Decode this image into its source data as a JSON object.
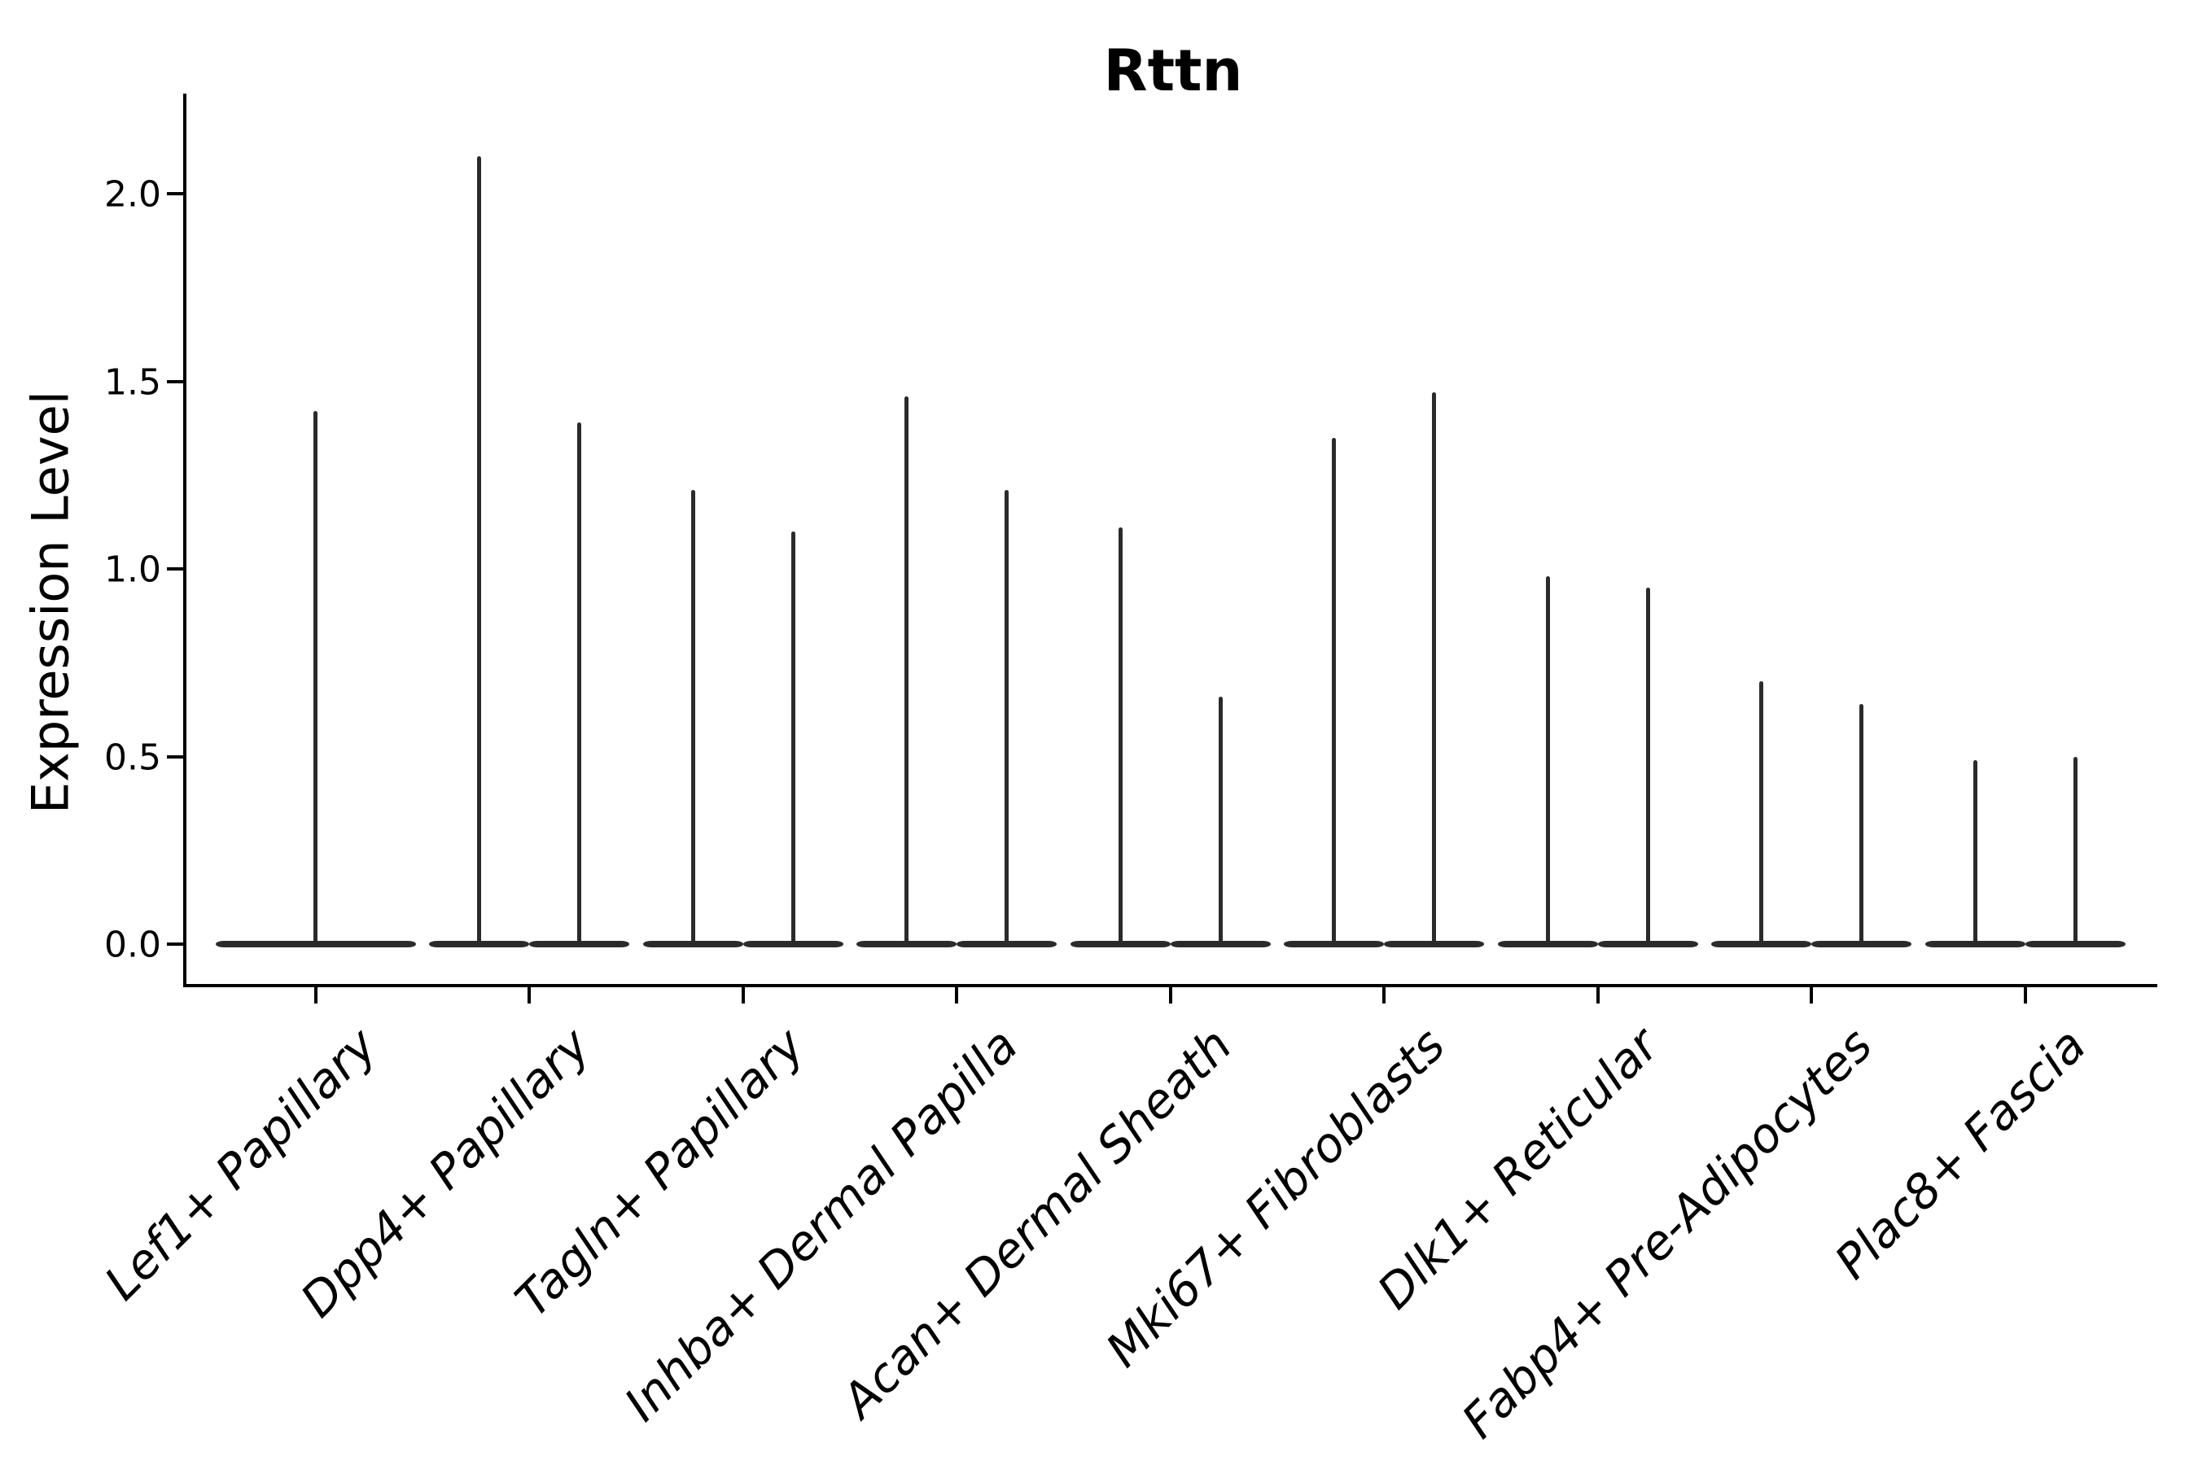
{
  "chart_data": {
    "type": "violin",
    "title": "Rttn",
    "xlabel": "",
    "ylabel": "Expression Level",
    "ylim": [
      0,
      2.27
    ],
    "yticks": [
      "0.0",
      "0.5",
      "1.0",
      "1.5",
      "2.0"
    ],
    "ytick_values": [
      0.0,
      0.5,
      1.0,
      1.5,
      2.0
    ],
    "grid": false,
    "legend": "none",
    "x_tick_label_rotation": 45,
    "x_tick_label_style": "italic",
    "note": "Each violin collapses to a flat horizontal bar at expression 0 with a single thin spike rising to its maximum expression value; first category has one full-width violin, all others have two half-width violins.",
    "categories": [
      "Lef1+ Papillary",
      "Dpp4+ Papillary",
      "Tagln+ Papillary",
      "Inhba+ Dermal Papilla",
      "Acan+ Dermal Sheath",
      "Mki67+ Fibroblasts",
      "Dlk1+ Reticular",
      "Fabp4+ Pre-Adipocytes",
      "Plac8+ Fascia"
    ],
    "series": [
      {
        "category": "Lef1+ Papillary",
        "violins": [
          {
            "min": 0,
            "max": 1.42
          }
        ]
      },
      {
        "category": "Dpp4+ Papillary",
        "violins": [
          {
            "min": 0,
            "max": 2.1
          },
          {
            "min": 0,
            "max": 1.39
          }
        ]
      },
      {
        "category": "Tagln+ Papillary",
        "violins": [
          {
            "min": 0,
            "max": 1.21
          },
          {
            "min": 0,
            "max": 1.1
          }
        ]
      },
      {
        "category": "Inhba+ Dermal Papilla",
        "violins": [
          {
            "min": 0,
            "max": 1.46
          },
          {
            "min": 0,
            "max": 1.21
          }
        ]
      },
      {
        "category": "Acan+ Dermal Sheath",
        "violins": [
          {
            "min": 0,
            "max": 1.11
          },
          {
            "min": 0,
            "max": 0.66
          }
        ]
      },
      {
        "category": "Mki67+ Fibroblasts",
        "violins": [
          {
            "min": 0,
            "max": 1.35
          },
          {
            "min": 0,
            "max": 1.47
          }
        ]
      },
      {
        "category": "Dlk1+ Reticular",
        "violins": [
          {
            "min": 0,
            "max": 0.98
          },
          {
            "min": 0,
            "max": 0.95
          }
        ]
      },
      {
        "category": "Fabp4+ Pre-Adipocytes",
        "violins": [
          {
            "min": 0,
            "max": 0.7
          },
          {
            "min": 0,
            "max": 0.64
          }
        ]
      },
      {
        "category": "Plac8+ Fascia",
        "violins": [
          {
            "min": 0,
            "max": 0.49
          },
          {
            "min": 0,
            "max": 0.5
          }
        ]
      }
    ]
  },
  "colors": {
    "violin": "#2b2b2b",
    "axis": "#000000",
    "text": "#000000",
    "background": "#ffffff"
  }
}
